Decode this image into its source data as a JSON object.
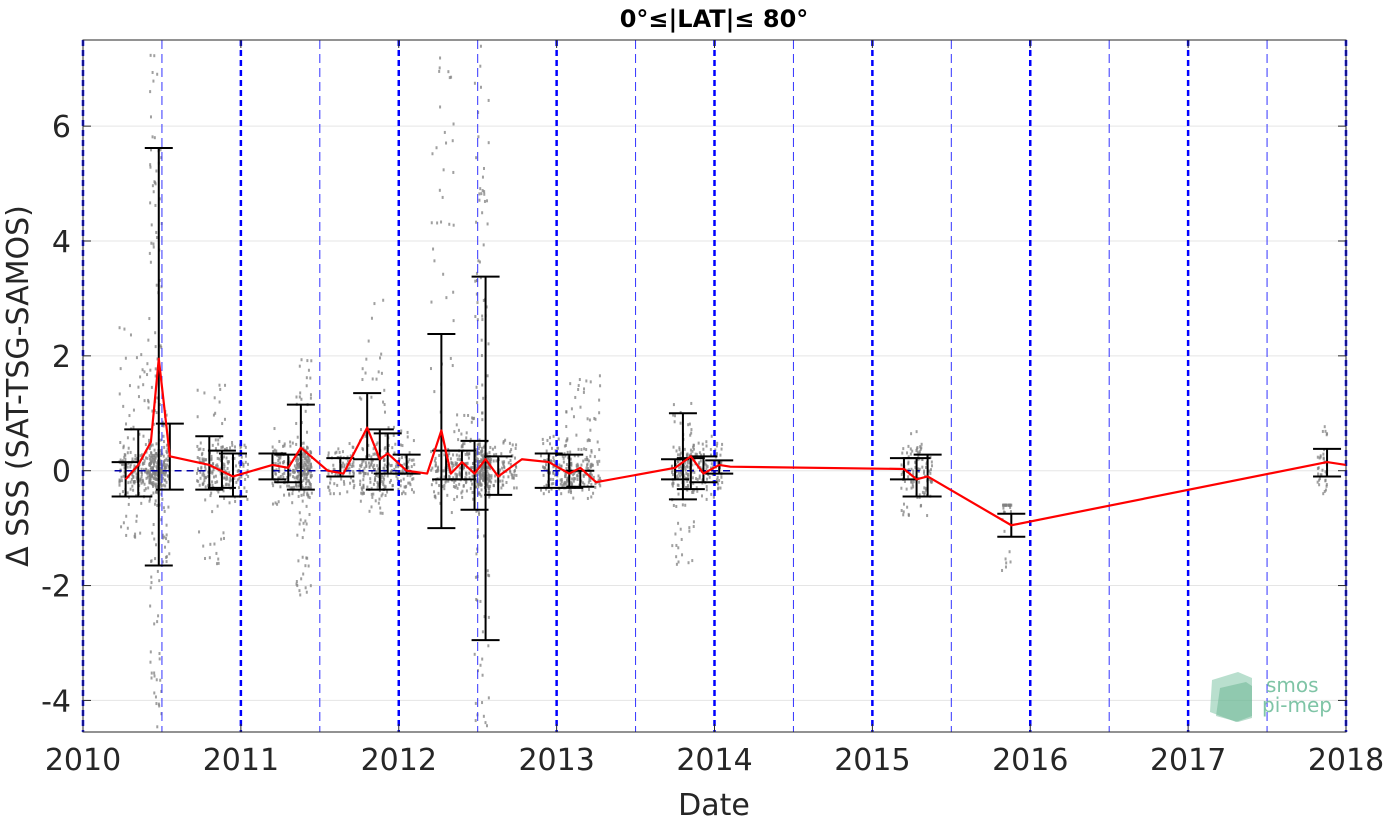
{
  "chart_data": {
    "type": "scatter",
    "title": "0°≤|LAT|≤ 80°",
    "xlabel": "Date",
    "ylabel": "Δ SSS (SAT-TSG-SAMOS)",
    "xlim": [
      2010.0,
      2018.0
    ],
    "ylim": [
      -4.55,
      7.5
    ],
    "x_ticks": [
      2010,
      2011,
      2012,
      2013,
      2014,
      2015,
      2016,
      2017,
      2018
    ],
    "x_tick_labels": [
      "2010",
      "2011",
      "2012",
      "2013",
      "2014",
      "2015",
      "2016",
      "2017",
      "2018"
    ],
    "y_ticks": [
      -4,
      -2,
      0,
      2,
      4,
      6
    ],
    "y_tick_labels": [
      "-4",
      "-2",
      "0",
      "2",
      "4",
      "6"
    ],
    "grid": true,
    "year_boundaries": [
      2010,
      2011,
      2012,
      2013,
      2014,
      2015,
      2016,
      2017,
      2018
    ],
    "half_year_lines": [
      2010.5,
      2011.5,
      2012.5,
      2013.5,
      2014.5,
      2015.5,
      2016.5,
      2017.5
    ],
    "zero_line_segments": [
      [
        2010.2,
        2010.8
      ],
      [
        2011.2,
        2012.1
      ],
      [
        2012.9,
        2013.2
      ],
      [
        2013.75,
        2014.1
      ],
      [
        2015.2,
        2015.3
      ]
    ],
    "scatter_clusters": [
      {
        "x": [
          2010.23,
          2010.42
        ],
        "y": [
          -1.2,
          2.5
        ],
        "density": 1.0
      },
      {
        "x": [
          2010.42,
          2010.5
        ],
        "y": [
          -4.55,
          7.5
        ],
        "density": 1.6
      },
      {
        "x": [
          2010.5,
          2010.55
        ],
        "y": [
          -1.6,
          1.2
        ],
        "density": 0.4
      },
      {
        "x": [
          2010.72,
          2010.9
        ],
        "y": [
          -1.7,
          1.5
        ],
        "density": 0.8
      },
      {
        "x": [
          2010.9,
          2011.05
        ],
        "y": [
          -0.6,
          0.5
        ],
        "density": 0.4
      },
      {
        "x": [
          2011.2,
          2011.35
        ],
        "y": [
          -0.6,
          0.8
        ],
        "density": 0.5
      },
      {
        "x": [
          2011.35,
          2011.45
        ],
        "y": [
          -2.2,
          2.0
        ],
        "density": 1.2
      },
      {
        "x": [
          2011.55,
          2011.72
        ],
        "y": [
          -0.4,
          0.5
        ],
        "density": 0.4
      },
      {
        "x": [
          2011.75,
          2011.92
        ],
        "y": [
          -0.8,
          3.0
        ],
        "density": 0.9
      },
      {
        "x": [
          2011.92,
          2012.1
        ],
        "y": [
          -0.4,
          0.8
        ],
        "density": 0.5
      },
      {
        "x": [
          2012.2,
          2012.35
        ],
        "y": [
          -0.8,
          7.2
        ],
        "density": 0.6
      },
      {
        "x": [
          2012.35,
          2012.48
        ],
        "y": [
          -0.5,
          1.0
        ],
        "density": 0.6
      },
      {
        "x": [
          2012.48,
          2012.58
        ],
        "y": [
          -4.55,
          7.5
        ],
        "density": 1.6
      },
      {
        "x": [
          2012.58,
          2012.75
        ],
        "y": [
          -0.3,
          0.6
        ],
        "density": 0.4
      },
      {
        "x": [
          2012.9,
          2013.1
        ],
        "y": [
          -0.4,
          0.6
        ],
        "density": 0.6
      },
      {
        "x": [
          2013.05,
          2013.28
        ],
        "y": [
          -0.5,
          1.7
        ],
        "density": 0.8
      },
      {
        "x": [
          2013.73,
          2013.87
        ],
        "y": [
          -1.7,
          1.2
        ],
        "density": 0.9
      },
      {
        "x": [
          2013.87,
          2014.05
        ],
        "y": [
          -0.5,
          0.6
        ],
        "density": 0.5
      },
      {
        "x": [
          2015.18,
          2015.38
        ],
        "y": [
          -0.8,
          0.7
        ],
        "density": 0.6
      },
      {
        "x": [
          2015.82,
          2015.88
        ],
        "y": [
          -1.8,
          -0.6
        ],
        "density": 0.2
      },
      {
        "x": [
          2017.82,
          2017.88
        ],
        "y": [
          -0.4,
          0.9
        ],
        "density": 0.2
      }
    ],
    "series": [
      {
        "x": [
          2010.27,
          2010.35,
          2010.43,
          2010.48,
          2010.55,
          2010.8,
          2010.95,
          2011.2,
          2011.3,
          2011.38,
          2011.55,
          2011.65,
          2011.8,
          2011.88,
          2011.93,
          2012.05,
          2012.18,
          2012.27,
          2012.33,
          2012.4,
          2012.48,
          2012.55,
          2012.63,
          2012.78,
          2012.95,
          2013.08,
          2013.15,
          2013.25,
          2013.75,
          2013.85,
          2013.93,
          2014.03,
          2014.1,
          2015.2,
          2015.28,
          2015.35,
          2015.88,
          2017.88,
          2018.0
        ],
        "y": [
          -0.15,
          0.1,
          0.5,
          1.95,
          0.25,
          0.1,
          -0.1,
          0.1,
          0.05,
          0.4,
          0.0,
          -0.05,
          0.75,
          0.2,
          0.3,
          0.0,
          -0.05,
          0.7,
          -0.05,
          0.15,
          -0.05,
          0.2,
          -0.1,
          0.2,
          0.15,
          -0.05,
          0.05,
          -0.2,
          0.05,
          0.25,
          -0.05,
          0.1,
          0.07,
          0.03,
          -0.15,
          -0.1,
          -0.95,
          0.15,
          0.1
        ],
        "color": "#ff0000"
      }
    ],
    "error_bars": [
      {
        "x": 2010.27,
        "low": -0.45,
        "high": 0.15
      },
      {
        "x": 2010.35,
        "low": -0.45,
        "high": 0.72
      },
      {
        "x": 2010.48,
        "low": -1.65,
        "high": 5.62
      },
      {
        "x": 2010.55,
        "low": -0.33,
        "high": 0.82
      },
      {
        "x": 2010.8,
        "low": -0.33,
        "high": 0.6
      },
      {
        "x": 2010.88,
        "low": -0.3,
        "high": 0.35
      },
      {
        "x": 2010.95,
        "low": -0.45,
        "high": 0.3
      },
      {
        "x": 2011.2,
        "low": -0.15,
        "high": 0.3
      },
      {
        "x": 2011.3,
        "low": -0.2,
        "high": 0.28
      },
      {
        "x": 2011.38,
        "low": -0.33,
        "high": 1.15
      },
      {
        "x": 2011.63,
        "low": -0.1,
        "high": 0.22
      },
      {
        "x": 2011.8,
        "low": 0.2,
        "high": 1.35
      },
      {
        "x": 2011.88,
        "low": -0.33,
        "high": 0.72
      },
      {
        "x": 2011.93,
        "low": -0.05,
        "high": 0.65
      },
      {
        "x": 2012.05,
        "low": -0.05,
        "high": 0.28
      },
      {
        "x": 2012.27,
        "low": -1.0,
        "high": 2.38
      },
      {
        "x": 2012.3,
        "low": -0.15,
        "high": 0.35
      },
      {
        "x": 2012.4,
        "low": -0.15,
        "high": 0.35
      },
      {
        "x": 2012.48,
        "low": -0.68,
        "high": 0.52
      },
      {
        "x": 2012.55,
        "low": -2.95,
        "high": 3.38
      },
      {
        "x": 2012.63,
        "low": -0.42,
        "high": 0.25
      },
      {
        "x": 2012.95,
        "low": -0.3,
        "high": 0.3
      },
      {
        "x": 2013.08,
        "low": -0.3,
        "high": 0.28
      },
      {
        "x": 2013.15,
        "low": -0.28,
        "high": 0.0
      },
      {
        "x": 2013.75,
        "low": -0.15,
        "high": 0.2
      },
      {
        "x": 2013.8,
        "low": -0.5,
        "high": 1.0
      },
      {
        "x": 2013.85,
        "low": -0.32,
        "high": 0.22
      },
      {
        "x": 2013.93,
        "low": -0.2,
        "high": 0.25
      },
      {
        "x": 2014.03,
        "low": -0.05,
        "high": 0.18
      },
      {
        "x": 2015.2,
        "low": -0.15,
        "high": 0.22
      },
      {
        "x": 2015.28,
        "low": -0.45,
        "high": 0.22
      },
      {
        "x": 2015.35,
        "low": -0.45,
        "high": 0.28
      },
      {
        "x": 2015.88,
        "low": -1.15,
        "high": -0.75
      },
      {
        "x": 2017.88,
        "low": -0.1,
        "high": 0.38
      }
    ]
  },
  "watermark": {
    "line1": "smos",
    "line2": "pi-mep"
  },
  "colors": {
    "mean_line": "#ff0000",
    "scatter": "#808080",
    "error_bar": "#000000",
    "year_line": "#0000ff",
    "half_year_line": "#3333ff",
    "grid": "#e5e5e5",
    "watermark": "#7fc4a6"
  }
}
